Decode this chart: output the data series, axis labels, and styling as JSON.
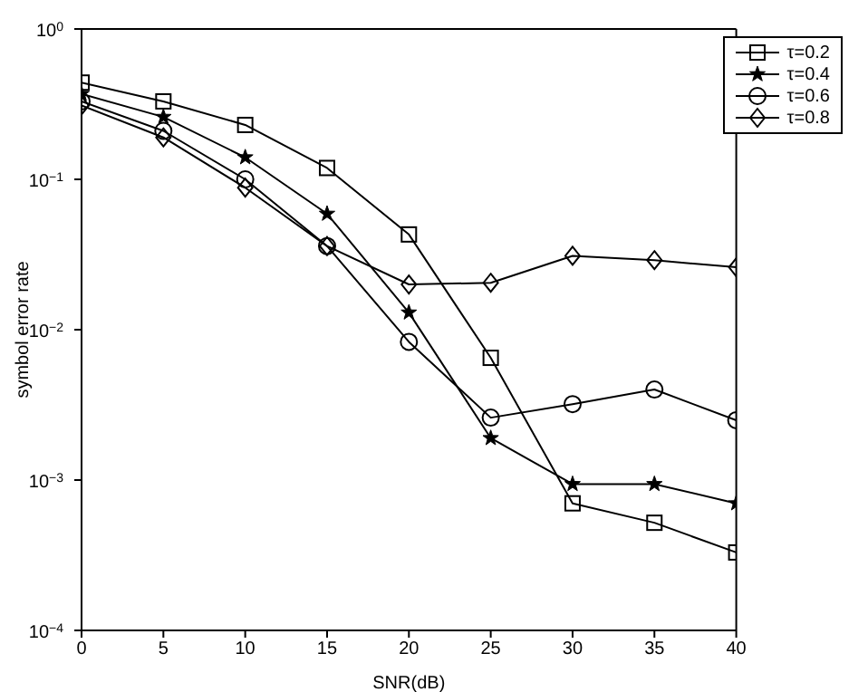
{
  "chart_data": {
    "type": "line",
    "xlabel": "SNR(dB)",
    "ylabel": "symbol error rate",
    "log": "y",
    "grid": false,
    "legend": "top right",
    "x": [
      0,
      5,
      10,
      15,
      20,
      25,
      30,
      35,
      40
    ],
    "xlim": [
      0,
      40
    ],
    "xticks": [
      0,
      5,
      10,
      15,
      20,
      25,
      30,
      35,
      40
    ],
    "ylim": [
      0.0001,
      1
    ],
    "yticks": [
      {
        "value": 0.0001,
        "label": "10$^{−4}$"
      },
      {
        "value": 0.001,
        "label": "10$^{−3}$"
      },
      {
        "value": 0.01,
        "label": "10$^{−2}$"
      },
      {
        "value": 0.1,
        "label": "10$^{−1}$"
      },
      {
        "value": 1,
        "label": "10$^{0}$"
      }
    ],
    "series": [
      {
        "name": "τ=0.2",
        "color": "#000000",
        "marker": "square",
        "values": [
          0.44,
          0.33,
          0.23,
          0.119,
          0.043,
          0.0065,
          0.0007,
          0.00052,
          0.00033
        ]
      },
      {
        "name": "τ=0.4",
        "color": "#000000",
        "marker": "star",
        "values": [
          0.37,
          0.26,
          0.14,
          0.059,
          0.013,
          0.0019,
          0.00094,
          0.00094,
          0.0007
        ]
      },
      {
        "name": "τ=0.6",
        "color": "#000000",
        "marker": "circle",
        "values": [
          0.33,
          0.21,
          0.1,
          0.036,
          0.0083,
          0.0026,
          0.0032,
          0.004,
          0.0025
        ]
      },
      {
        "name": "τ=0.8",
        "color": "#000000",
        "marker": "diamond",
        "values": [
          0.31,
          0.19,
          0.088,
          0.036,
          0.02,
          0.0205,
          0.031,
          0.029,
          0.026
        ]
      }
    ]
  }
}
